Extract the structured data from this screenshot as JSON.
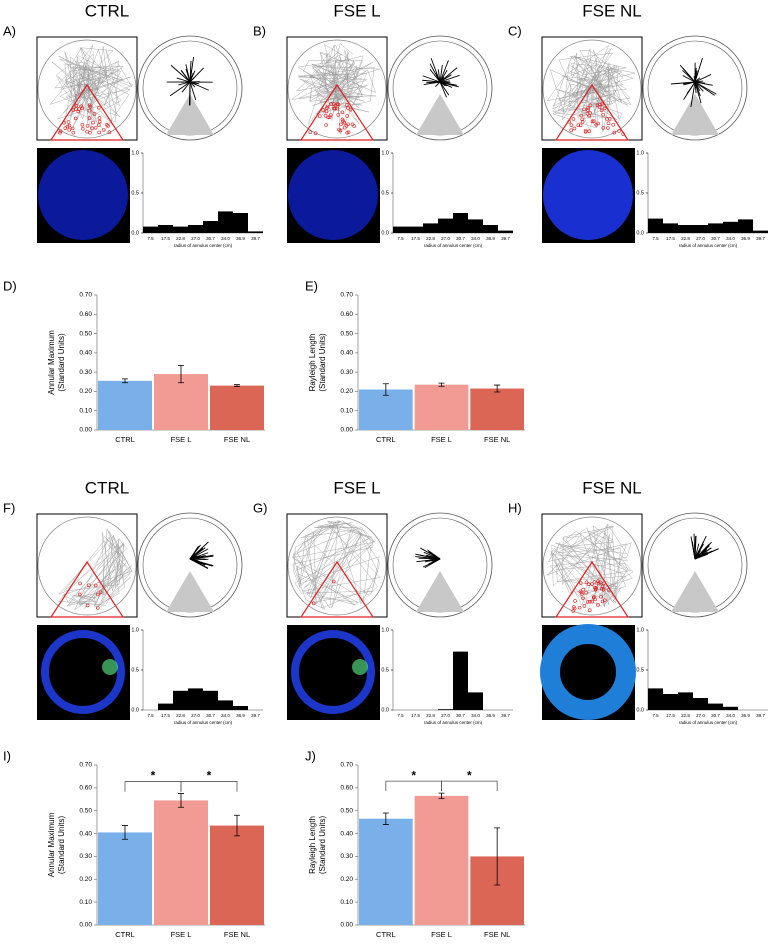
{
  "chart_data": [
    {
      "type": "bar",
      "title": "CTRL",
      "panel": "A)",
      "color": "#000000",
      "xlabel": "radius of annulus center (cm)",
      "categories": [
        "7.5",
        "17.5",
        "22.8",
        "27.0",
        "30.7",
        "34.0",
        "36.9",
        "39.7"
      ],
      "values": [
        0.08,
        0.1,
        0.08,
        0.1,
        0.15,
        0.27,
        0.25,
        0.02
      ],
      "ylim": [
        0,
        1
      ],
      "yticks": [
        {
          "value": 0,
          "label": "0.0"
        },
        {
          "value": 0.5,
          "label": "0.5"
        },
        {
          "value": 1,
          "label": "1.0"
        }
      ]
    },
    {
      "type": "bar",
      "title": "FSE L",
      "panel": "B)",
      "color": "#000000",
      "xlabel": "radius of annulus center (cm)",
      "categories": [
        "7.5",
        "17.5",
        "22.8",
        "27.0",
        "30.7",
        "34.0",
        "36.9",
        "39.7"
      ],
      "values": [
        0.08,
        0.08,
        0.12,
        0.18,
        0.25,
        0.17,
        0.1,
        0.03
      ],
      "ylim": [
        0,
        1
      ],
      "yticks": [
        {
          "value": 0,
          "label": "0.0"
        },
        {
          "value": 0.5,
          "label": "0.5"
        },
        {
          "value": 1,
          "label": "1.0"
        }
      ]
    },
    {
      "type": "bar",
      "title": "FSE NL",
      "panel": "C)",
      "color": "#000000",
      "xlabel": "radius of annulus center (cm)",
      "categories": [
        "7.5",
        "17.5",
        "22.8",
        "27.0",
        "30.7",
        "34.0",
        "36.9",
        "39.7"
      ],
      "values": [
        0.18,
        0.12,
        0.1,
        0.1,
        0.12,
        0.14,
        0.17,
        0.03
      ],
      "ylim": [
        0,
        1
      ],
      "yticks": [
        {
          "value": 0,
          "label": "0.0"
        },
        {
          "value": 0.5,
          "label": "0.5"
        },
        {
          "value": 1,
          "label": "1.0"
        }
      ]
    },
    {
      "type": "bar",
      "panel": "D)",
      "ylabel": [
        "Annular Maximum",
        "(Standard Units)"
      ],
      "categories": [
        "CTRL",
        "FSE L",
        "FSE NL"
      ],
      "values": [
        0.255,
        0.29,
        0.23
      ],
      "errors": [
        0.01,
        0.045,
        0.005
      ],
      "colors": [
        "#7ab0ea",
        "#f29a94",
        "#dc6656"
      ],
      "ylim": [
        0,
        0.7
      ],
      "yticks": [
        {
          "value": 0,
          "label": "0.00"
        },
        {
          "value": 0.1,
          "label": "0.10"
        },
        {
          "value": 0.2,
          "label": "0.20"
        },
        {
          "value": 0.3,
          "label": "0.30"
        },
        {
          "value": 0.4,
          "label": "0.40"
        },
        {
          "value": 0.5,
          "label": "0.50"
        },
        {
          "value": 0.6,
          "label": "0.60"
        },
        {
          "value": 0.7,
          "label": "0.70"
        }
      ]
    },
    {
      "type": "bar",
      "panel": "E)",
      "ylabel": [
        "Rayleigh Length",
        "(Standard Units)"
      ],
      "categories": [
        "CTRL",
        "FSE L",
        "FSE NL"
      ],
      "values": [
        0.21,
        0.235,
        0.215
      ],
      "errors": [
        0.03,
        0.008,
        0.018
      ],
      "colors": [
        "#7ab0ea",
        "#f29a94",
        "#dc6656"
      ],
      "ylim": [
        0,
        0.7
      ],
      "yticks": [
        {
          "value": 0,
          "label": "0.00"
        },
        {
          "value": 0.1,
          "label": "0.10"
        },
        {
          "value": 0.2,
          "label": "0.20"
        },
        {
          "value": 0.3,
          "label": "0.30"
        },
        {
          "value": 0.4,
          "label": "0.40"
        },
        {
          "value": 0.5,
          "label": "0.50"
        },
        {
          "value": 0.6,
          "label": "0.60"
        },
        {
          "value": 0.7,
          "label": "0.70"
        }
      ]
    },
    {
      "type": "bar",
      "title": "CTRL",
      "panel": "F)",
      "color": "#000000",
      "xlabel": "radius of annulus center (cm)",
      "categories": [
        "7.5",
        "17.5",
        "22.8",
        "27.0",
        "30.7",
        "34.0",
        "36.9",
        "39.7"
      ],
      "values": [
        0,
        0.08,
        0.24,
        0.27,
        0.24,
        0.12,
        0.05,
        0
      ],
      "ylim": [
        0,
        1
      ],
      "yticks": [
        {
          "value": 0,
          "label": "0.0"
        },
        {
          "value": 0.5,
          "label": "0.5"
        },
        {
          "value": 1,
          "label": "1.0"
        }
      ]
    },
    {
      "type": "bar",
      "title": "FSE L",
      "panel": "G)",
      "color": "#000000",
      "xlabel": "radius of annulus center (cm)",
      "categories": [
        "7.5",
        "17.5",
        "22.8",
        "27.0",
        "30.7",
        "34.0",
        "36.9",
        "39.7"
      ],
      "values": [
        0,
        0,
        0,
        0.01,
        0.73,
        0.22,
        0,
        0
      ],
      "ylim": [
        0,
        1
      ],
      "yticks": [
        {
          "value": 0,
          "label": "0.0"
        },
        {
          "value": 0.5,
          "label": "0.5"
        },
        {
          "value": 1,
          "label": "1.0"
        }
      ]
    },
    {
      "type": "bar",
      "title": "FSE NL",
      "panel": "H)",
      "color": "#000000",
      "xlabel": "radius of annulus center (cm)",
      "categories": [
        "7.5",
        "17.5",
        "22.8",
        "27.0",
        "30.7",
        "34.0",
        "36.9",
        "39.7"
      ],
      "values": [
        0.27,
        0.2,
        0.22,
        0.15,
        0.08,
        0.04,
        0,
        0
      ],
      "ylim": [
        0,
        1
      ],
      "yticks": [
        {
          "value": 0,
          "label": "0.0"
        },
        {
          "value": 0.5,
          "label": "0.5"
        },
        {
          "value": 1,
          "label": "1.0"
        }
      ]
    },
    {
      "type": "bar",
      "panel": "I)",
      "ylabel": [
        "Annular Maximum",
        "(Standard Units)"
      ],
      "categories": [
        "CTRL",
        "FSE L",
        "FSE NL"
      ],
      "values": [
        0.405,
        0.545,
        0.435
      ],
      "errors": [
        0.03,
        0.03,
        0.045
      ],
      "colors": [
        "#7ab0ea",
        "#f29a94",
        "#dc6656"
      ],
      "ylim": [
        0,
        0.7
      ],
      "significance": [
        {
          "label": "*"
        },
        {
          "label": "*"
        }
      ],
      "yticks": [
        {
          "value": 0,
          "label": "0.00"
        },
        {
          "value": 0.1,
          "label": "0.10"
        },
        {
          "value": 0.2,
          "label": "0.20"
        },
        {
          "value": 0.3,
          "label": "0.30"
        },
        {
          "value": 0.4,
          "label": "0.40"
        },
        {
          "value": 0.5,
          "label": "0.50"
        },
        {
          "value": 0.6,
          "label": "0.60"
        },
        {
          "value": 0.7,
          "label": "0.70"
        }
      ]
    },
    {
      "type": "bar",
      "panel": "J)",
      "ylabel": [
        "Rayleigh Length",
        "(Standard Units)"
      ],
      "categories": [
        "CTRL",
        "FSE L",
        "FSE NL"
      ],
      "values": [
        0.465,
        0.565,
        0.3
      ],
      "errors": [
        0.025,
        0.012,
        0.125
      ],
      "colors": [
        "#7ab0ea",
        "#f29a94",
        "#dc6656"
      ],
      "ylim": [
        0,
        0.7
      ],
      "significance": [
        {
          "label": "*"
        },
        {
          "label": "*"
        }
      ],
      "yticks": [
        {
          "value": 0,
          "label": "0.00"
        },
        {
          "value": 0.1,
          "label": "0.10"
        },
        {
          "value": 0.2,
          "label": "0.20"
        },
        {
          "value": 0.3,
          "label": "0.30"
        },
        {
          "value": 0.4,
          "label": "0.40"
        },
        {
          "value": 0.5,
          "label": "0.50"
        },
        {
          "value": 0.6,
          "label": "0.60"
        },
        {
          "value": 0.7,
          "label": "0.70"
        }
      ]
    }
  ]
}
